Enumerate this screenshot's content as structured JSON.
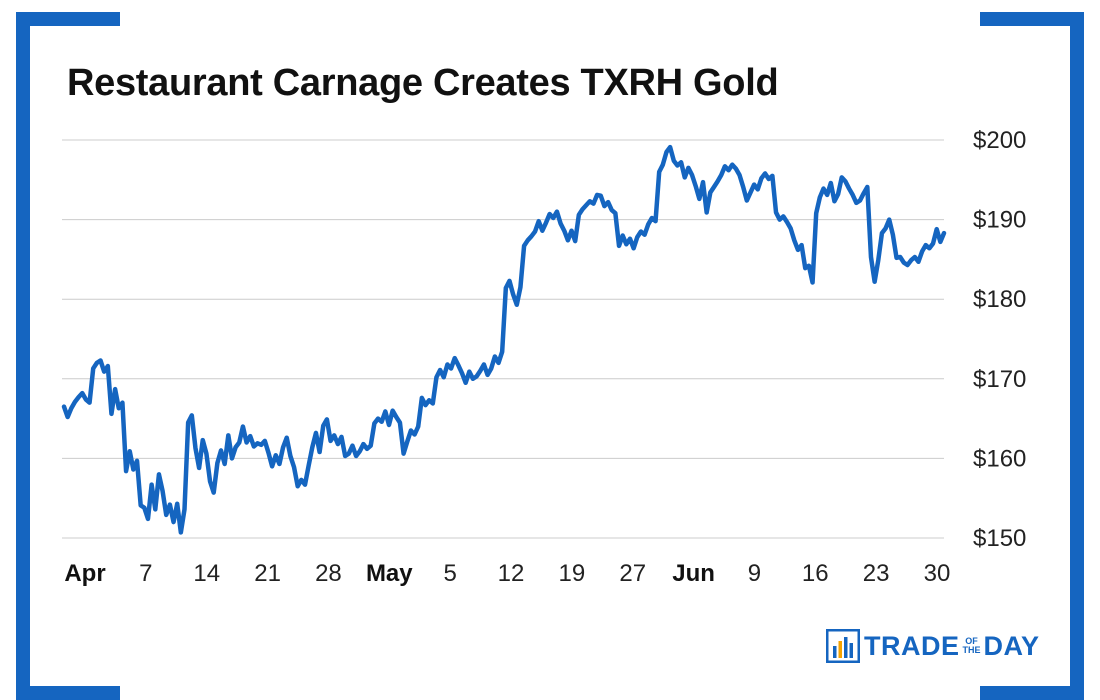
{
  "chart_data": {
    "type": "line",
    "title": "Restaurant Carnage Creates TXRH Gold",
    "ylabel": "",
    "xlabel": "",
    "ylim": [
      150,
      200
    ],
    "yticks": [
      150,
      160,
      170,
      180,
      190,
      200
    ],
    "y_tick_labels": [
      "$150",
      "$160",
      "$170",
      "$180",
      "$190",
      "$200"
    ],
    "x_ticks": [
      {
        "label": "Apr",
        "major": true
      },
      {
        "label": "7",
        "major": false
      },
      {
        "label": "14",
        "major": false
      },
      {
        "label": "21",
        "major": false
      },
      {
        "label": "28",
        "major": false
      },
      {
        "label": "May",
        "major": true
      },
      {
        "label": "5",
        "major": false
      },
      {
        "label": "12",
        "major": false
      },
      {
        "label": "19",
        "major": false
      },
      {
        "label": "27",
        "major": false
      },
      {
        "label": "Jun",
        "major": true
      },
      {
        "label": "9",
        "major": false
      },
      {
        "label": "16",
        "major": false
      },
      {
        "label": "23",
        "major": false
      },
      {
        "label": "30",
        "major": false
      }
    ],
    "grid": true,
    "y_axis_position": "right",
    "line_color": "#1565c0",
    "series": [
      {
        "name": "",
        "values": [
          166.5,
          165.2,
          166.3,
          167.1,
          167.7,
          168.2,
          167.4,
          167.0,
          171.3,
          172.0,
          172.3,
          170.9,
          171.6,
          165.6,
          168.7,
          166.3,
          167.0,
          158.4,
          160.9,
          158.6,
          159.7,
          154.1,
          153.8,
          152.4,
          156.7,
          153.6,
          158.0,
          155.9,
          152.9,
          154.2,
          152.0,
          154.3,
          150.7,
          153.6,
          164.5,
          165.4,
          161.3,
          158.8,
          162.3,
          160.6,
          157.1,
          155.7,
          159.4,
          161.0,
          159.3,
          162.9,
          160.0,
          161.4,
          162.0,
          164.0,
          162.0,
          162.8,
          161.5,
          161.9,
          161.7,
          162.2,
          160.7,
          159.0,
          160.4,
          159.3,
          161.4,
          162.6,
          160.3,
          158.9,
          156.5,
          157.3,
          156.7,
          159.1,
          161.4,
          163.2,
          160.8,
          164.1,
          164.9,
          162.2,
          162.9,
          161.8,
          162.7,
          160.3,
          160.6,
          161.6,
          160.3,
          160.9,
          161.8,
          161.2,
          161.6,
          164.4,
          165.0,
          164.6,
          165.9,
          164.2,
          166.0,
          165.2,
          164.5,
          160.6,
          162.1,
          163.5,
          163.0,
          164.0,
          167.6,
          166.7,
          167.3,
          166.9,
          170.2,
          171.1,
          170.2,
          171.8,
          171.3,
          172.6,
          171.7,
          170.7,
          169.5,
          170.9,
          170.0,
          170.3,
          171.0,
          171.8,
          170.5,
          171.3,
          172.8,
          172.0,
          173.4,
          181.4,
          182.3,
          180.6,
          179.3,
          181.5,
          186.7,
          187.4,
          187.9,
          188.5,
          189.8,
          188.6,
          189.6,
          190.7,
          190.2,
          191.0,
          189.5,
          188.6,
          187.4,
          188.6,
          187.3,
          190.6,
          191.3,
          191.8,
          192.3,
          192.0,
          193.1,
          193.0,
          191.7,
          192.2,
          191.2,
          190.8,
          186.7,
          188.0,
          186.9,
          187.6,
          186.4,
          187.8,
          188.5,
          188.1,
          189.4,
          190.2,
          189.8,
          196.0,
          196.9,
          198.5,
          199.1,
          197.4,
          196.8,
          197.2,
          195.3,
          196.5,
          195.6,
          194.2,
          192.6,
          194.7,
          190.9,
          193.4,
          194.1,
          194.8,
          195.6,
          196.7,
          196.2,
          196.9,
          196.4,
          195.6,
          194.1,
          192.4,
          193.4,
          194.4,
          193.8,
          195.2,
          195.8,
          195.1,
          195.5,
          190.9,
          190.0,
          190.4,
          189.7,
          188.9,
          187.4,
          186.2,
          186.8,
          183.9,
          184.2,
          182.1,
          190.8,
          192.8,
          193.9,
          193.1,
          194.6,
          192.3,
          193.2,
          195.3,
          194.8,
          193.9,
          193.1,
          192.1,
          192.4,
          193.3,
          194.1,
          185.3,
          182.2,
          184.9,
          188.3,
          188.9,
          190.0,
          188.1,
          185.2,
          185.3,
          184.6,
          184.3,
          184.9,
          185.3,
          184.7,
          186.0,
          186.8,
          186.4,
          187.0,
          188.8,
          187.2,
          188.3
        ]
      }
    ]
  },
  "logo": {
    "left_text": "TRADE",
    "mid_top": "OF",
    "mid_bottom": "THE",
    "right_text": "DAY",
    "color": "#1565c0"
  }
}
